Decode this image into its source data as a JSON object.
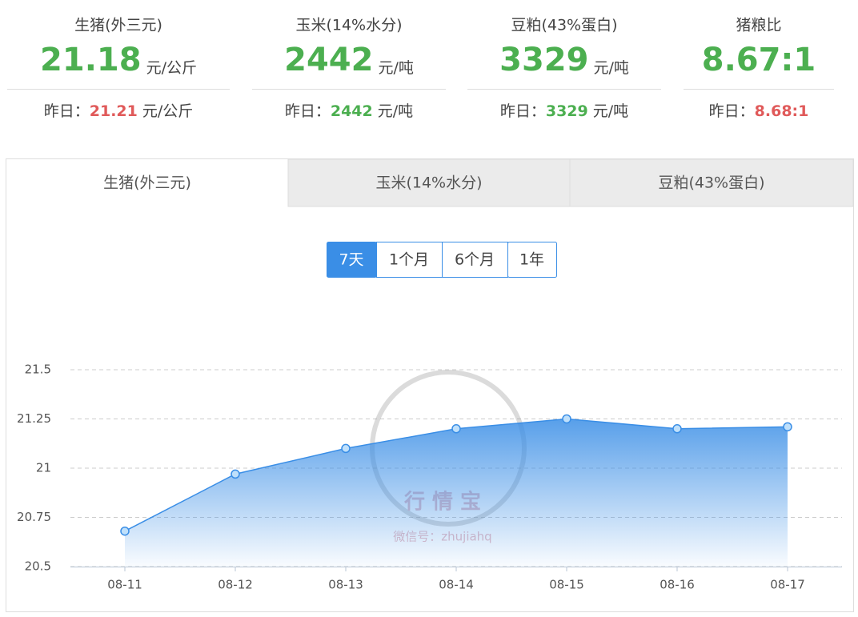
{
  "stats": [
    {
      "name": "生猪(外三元)",
      "value": 21.18,
      "unit": "元/公斤",
      "yesterday_label": "昨日：",
      "yesterday": 21.21,
      "yesterday_unit": "元/公斤",
      "yesterday_color": "#e05a5a"
    },
    {
      "name": "玉米(14%水分)",
      "value": 2442,
      "unit": "元/吨",
      "yesterday_label": "昨日：",
      "yesterday": 2442,
      "yesterday_unit": "元/吨",
      "yesterday_color": "#4caf50"
    },
    {
      "name": "豆粕(43%蛋白)",
      "value": 3329,
      "unit": "元/吨",
      "yesterday_label": "昨日：",
      "yesterday": 3329,
      "yesterday_unit": "元/吨",
      "yesterday_color": "#4caf50"
    },
    {
      "name": "猪粮比",
      "value": "8.67:1",
      "yesterday_label": "昨日：",
      "yesterday": "8.68:1",
      "yesterday_color": "#e05a5a"
    }
  ],
  "tabs": [
    "生猪(外三元)",
    "玉米(14%水分)",
    "豆粕(43%蛋白)"
  ],
  "ranges": [
    "7天",
    "1个月",
    "6个月",
    "1年"
  ],
  "watermark": {
    "logo": "行 情 宝",
    "wechat": "微信号：zhujiahq"
  },
  "chart_data": {
    "type": "line",
    "x": [
      "08-11",
      "08-12",
      "08-13",
      "08-14",
      "08-15",
      "08-16",
      "08-17"
    ],
    "values": [
      20.68,
      20.97,
      21.1,
      21.2,
      21.25,
      21.2,
      21.21
    ],
    "color": "#3a8ee6",
    "ylim": [
      20.5,
      21.5
    ],
    "yticks": [
      20.5,
      20.75,
      21,
      21.25,
      21.5
    ],
    "grid": true
  }
}
